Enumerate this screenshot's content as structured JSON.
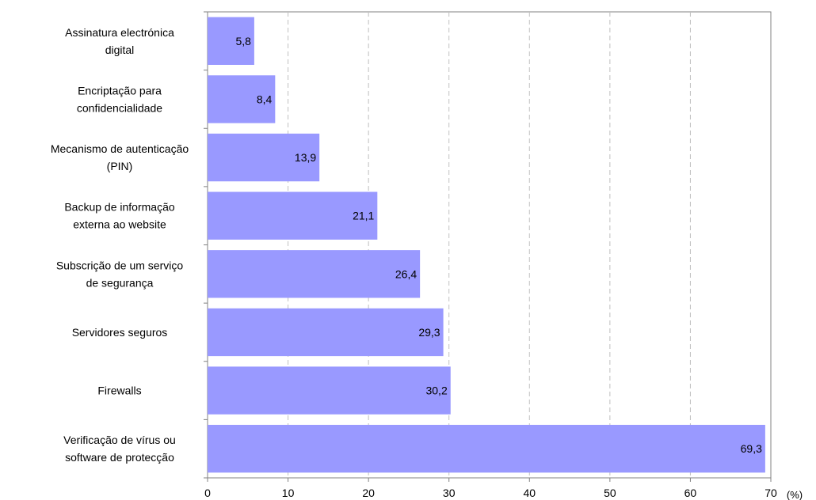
{
  "chart_data": {
    "type": "bar",
    "orientation": "horizontal",
    "categories": [
      [
        "Assinatura electrónica",
        "digital"
      ],
      [
        "Encriptação para",
        "confidencialidade"
      ],
      [
        "Mecanismo de autenticação",
        "(PIN)"
      ],
      [
        "Backup de informação",
        "externa ao website"
      ],
      [
        "Subscrição de um serviço",
        "de segurança"
      ],
      [
        "Servidores seguros"
      ],
      [
        "Firewalls"
      ],
      [
        "Verificação de vírus ou",
        "software de protecção"
      ]
    ],
    "values": [
      5.8,
      8.4,
      13.9,
      21.1,
      26.4,
      29.3,
      30.2,
      69.3
    ],
    "value_labels": [
      "5,8",
      "8,4",
      "13,9",
      "21,1",
      "26,4",
      "29,3",
      "30,2",
      "69,3"
    ],
    "x_ticks": [
      0,
      10,
      20,
      30,
      40,
      50,
      60,
      70
    ],
    "x_tick_labels": [
      "0",
      "10",
      "20",
      "30",
      "40",
      "50",
      "60",
      "70"
    ],
    "xlim": [
      0,
      70
    ],
    "unit_label": "(%)",
    "title": "",
    "xlabel": "",
    "ylabel": "",
    "grid": "vertical-dashed",
    "bar_color": "#9999FF",
    "grid_color": "#C0C0C0",
    "axis_color": "#808080",
    "frame_color": "#808080"
  }
}
